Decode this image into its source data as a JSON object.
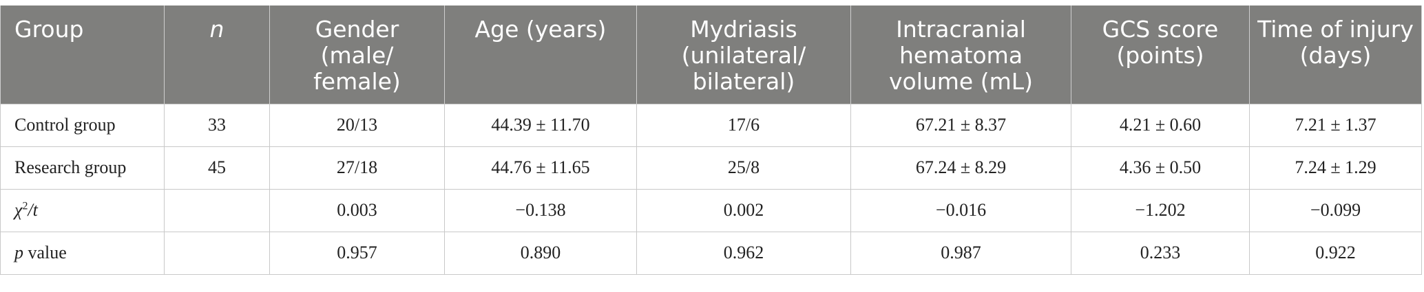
{
  "table": {
    "headers": [
      "Group",
      "n",
      "Gender (male/ female)",
      "Age (years)",
      "Mydriasis (unilateral/ bilateral)",
      "Intracranial hematoma volume (mL)",
      "GCS score (points)",
      "Time of injury (days)"
    ],
    "rows": [
      {
        "group": "Control group",
        "n": "33",
        "gender": "20/13",
        "age": "44.39 ± 11.70",
        "mydriasis": "17/6",
        "hematoma": "67.21 ± 8.37",
        "gcs": "4.21 ± 0.60",
        "time": "7.21 ± 1.37"
      },
      {
        "group": "Research group",
        "n": "45",
        "gender": "27/18",
        "age": "44.76 ± 11.65",
        "mydriasis": "25/8",
        "hematoma": "67.24 ± 8.29",
        "gcs": "4.36 ± 0.50",
        "time": "7.24 ± 1.29"
      },
      {
        "group_symbol": "χ",
        "group_sup": "2",
        "group_rest": "/t",
        "n": "",
        "gender": "0.003",
        "age": "−0.138",
        "mydriasis": "0.002",
        "hematoma": "−0.016",
        "gcs": "−1.202",
        "time": "−0.099"
      },
      {
        "group_italic": "p",
        "group_rest": " value",
        "n": "",
        "gender": "0.957",
        "age": "0.890",
        "mydriasis": "0.962",
        "hematoma": "0.987",
        "gcs": "0.233",
        "time": "0.922"
      }
    ]
  }
}
